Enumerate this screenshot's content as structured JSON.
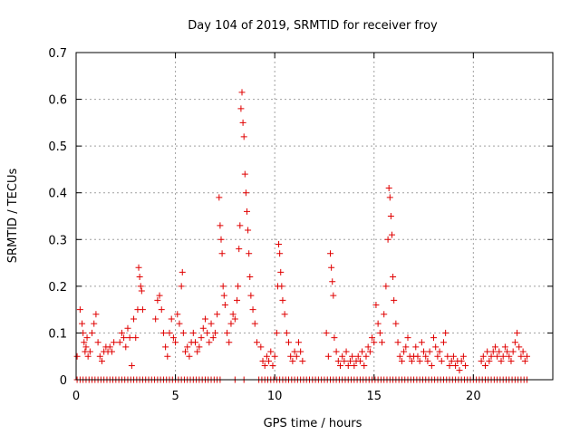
{
  "chart_data": {
    "type": "scatter",
    "title": "Day 104 of 2019, SRMTID for receiver froy",
    "xlabel": "GPS time / hours",
    "ylabel": "SRMTID / TECUs",
    "xlim": [
      0,
      24
    ],
    "ylim": [
      0,
      0.7
    ],
    "xticks": [
      0,
      5,
      10,
      15,
      20
    ],
    "xtick_labels": [
      "0",
      "5",
      "10",
      "15",
      "20"
    ],
    "yticks": [
      0,
      0.1,
      0.2,
      0.3,
      0.4,
      0.5,
      0.6,
      0.7
    ],
    "ytick_labels": [
      "0",
      "0.1",
      "0.2",
      "0.3",
      "0.4",
      "0.5",
      "0.6",
      "0.7"
    ],
    "grid": true,
    "marker": "+",
    "marker_color": "#e00000",
    "series": [
      {
        "name": "SRMTID",
        "points": [
          [
            0.05,
            0.05
          ],
          [
            0.2,
            0.15
          ],
          [
            0.3,
            0.12
          ],
          [
            0.35,
            0.1
          ],
          [
            0.4,
            0.08
          ],
          [
            0.45,
            0.06
          ],
          [
            0.5,
            0.07
          ],
          [
            0.55,
            0.09
          ],
          [
            0.6,
            0.05
          ],
          [
            0.7,
            0.06
          ],
          [
            0.8,
            0.1
          ],
          [
            0.9,
            0.12
          ],
          [
            1.0,
            0.14
          ],
          [
            1.1,
            0.08
          ],
          [
            1.2,
            0.05
          ],
          [
            1.3,
            0.04
          ],
          [
            1.4,
            0.06
          ],
          [
            1.5,
            0.07
          ],
          [
            1.6,
            0.06
          ],
          [
            1.7,
            0.07
          ],
          [
            1.8,
            0.06
          ],
          [
            1.9,
            0.08
          ],
          [
            2.2,
            0.08
          ],
          [
            2.3,
            0.1
          ],
          [
            2.4,
            0.09
          ],
          [
            2.5,
            0.07
          ],
          [
            2.6,
            0.11
          ],
          [
            2.7,
            0.09
          ],
          [
            2.8,
            0.03
          ],
          [
            2.9,
            0.13
          ],
          [
            3.0,
            0.09
          ],
          [
            3.1,
            0.15
          ],
          [
            3.15,
            0.24
          ],
          [
            3.2,
            0.22
          ],
          [
            3.25,
            0.2
          ],
          [
            3.3,
            0.19
          ],
          [
            3.35,
            0.15
          ],
          [
            4.0,
            0.13
          ],
          [
            4.1,
            0.17
          ],
          [
            4.2,
            0.18
          ],
          [
            4.3,
            0.15
          ],
          [
            4.4,
            0.1
          ],
          [
            4.5,
            0.07
          ],
          [
            4.6,
            0.05
          ],
          [
            4.7,
            0.1
          ],
          [
            4.8,
            0.13
          ],
          [
            4.9,
            0.09
          ],
          [
            5.0,
            0.08
          ],
          [
            5.1,
            0.14
          ],
          [
            5.2,
            0.12
          ],
          [
            5.3,
            0.2
          ],
          [
            5.35,
            0.23
          ],
          [
            5.4,
            0.1
          ],
          [
            5.5,
            0.06
          ],
          [
            5.6,
            0.07
          ],
          [
            5.7,
            0.05
          ],
          [
            5.8,
            0.08
          ],
          [
            5.9,
            0.1
          ],
          [
            6.0,
            0.08
          ],
          [
            6.1,
            0.06
          ],
          [
            6.2,
            0.07
          ],
          [
            6.3,
            0.09
          ],
          [
            6.4,
            0.11
          ],
          [
            6.5,
            0.13
          ],
          [
            6.6,
            0.1
          ],
          [
            6.7,
            0.08
          ],
          [
            6.8,
            0.12
          ],
          [
            6.9,
            0.09
          ],
          [
            7.0,
            0.1
          ],
          [
            7.1,
            0.14
          ],
          [
            7.2,
            0.39
          ],
          [
            7.25,
            0.33
          ],
          [
            7.3,
            0.3
          ],
          [
            7.35,
            0.27
          ],
          [
            7.4,
            0.2
          ],
          [
            7.45,
            0.18
          ],
          [
            7.5,
            0.16
          ],
          [
            7.6,
            0.1
          ],
          [
            7.7,
            0.08
          ],
          [
            7.8,
            0.12
          ],
          [
            7.9,
            0.14
          ],
          [
            8.0,
            0.13
          ],
          [
            8.1,
            0.17
          ],
          [
            8.15,
            0.2
          ],
          [
            8.2,
            0.28
          ],
          [
            8.25,
            0.33
          ],
          [
            8.3,
            0.58
          ],
          [
            8.35,
            0.615
          ],
          [
            8.4,
            0.55
          ],
          [
            8.45,
            0.52
          ],
          [
            8.5,
            0.44
          ],
          [
            8.55,
            0.4
          ],
          [
            8.6,
            0.36
          ],
          [
            8.65,
            0.32
          ],
          [
            8.7,
            0.27
          ],
          [
            8.75,
            0.22
          ],
          [
            8.8,
            0.18
          ],
          [
            8.9,
            0.15
          ],
          [
            9.0,
            0.12
          ],
          [
            9.1,
            0.08
          ],
          [
            9.3,
            0.07
          ],
          [
            9.4,
            0.04
          ],
          [
            9.5,
            0.03
          ],
          [
            9.6,
            0.05
          ],
          [
            9.7,
            0.04
          ],
          [
            9.8,
            0.06
          ],
          [
            9.9,
            0.03
          ],
          [
            10.0,
            0.05
          ],
          [
            10.1,
            0.1
          ],
          [
            10.15,
            0.2
          ],
          [
            10.2,
            0.29
          ],
          [
            10.25,
            0.27
          ],
          [
            10.3,
            0.23
          ],
          [
            10.35,
            0.2
          ],
          [
            10.4,
            0.17
          ],
          [
            10.5,
            0.14
          ],
          [
            10.6,
            0.1
          ],
          [
            10.7,
            0.08
          ],
          [
            10.8,
            0.05
          ],
          [
            10.9,
            0.04
          ],
          [
            11.0,
            0.06
          ],
          [
            11.1,
            0.05
          ],
          [
            11.2,
            0.08
          ],
          [
            11.3,
            0.06
          ],
          [
            11.4,
            0.04
          ],
          [
            12.6,
            0.1
          ],
          [
            12.7,
            0.05
          ],
          [
            12.8,
            0.27
          ],
          [
            12.85,
            0.24
          ],
          [
            12.9,
            0.21
          ],
          [
            12.95,
            0.18
          ],
          [
            13.0,
            0.09
          ],
          [
            13.1,
            0.06
          ],
          [
            13.2,
            0.04
          ],
          [
            13.3,
            0.03
          ],
          [
            13.4,
            0.05
          ],
          [
            13.5,
            0.04
          ],
          [
            13.6,
            0.06
          ],
          [
            13.7,
            0.03
          ],
          [
            13.8,
            0.04
          ],
          [
            13.9,
            0.05
          ],
          [
            14.0,
            0.03
          ],
          [
            14.1,
            0.04
          ],
          [
            14.2,
            0.05
          ],
          [
            14.3,
            0.04
          ],
          [
            14.4,
            0.06
          ],
          [
            14.5,
            0.03
          ],
          [
            14.6,
            0.05
          ],
          [
            14.7,
            0.07
          ],
          [
            14.8,
            0.06
          ],
          [
            14.9,
            0.09
          ],
          [
            15.0,
            0.08
          ],
          [
            15.1,
            0.16
          ],
          [
            15.2,
            0.12
          ],
          [
            15.3,
            0.1
          ],
          [
            15.4,
            0.08
          ],
          [
            15.5,
            0.14
          ],
          [
            15.6,
            0.2
          ],
          [
            15.7,
            0.3
          ],
          [
            15.75,
            0.41
          ],
          [
            15.8,
            0.39
          ],
          [
            15.85,
            0.35
          ],
          [
            15.9,
            0.31
          ],
          [
            15.95,
            0.22
          ],
          [
            16.0,
            0.17
          ],
          [
            16.1,
            0.12
          ],
          [
            16.2,
            0.08
          ],
          [
            16.3,
            0.05
          ],
          [
            16.4,
            0.04
          ],
          [
            16.5,
            0.06
          ],
          [
            16.6,
            0.07
          ],
          [
            16.7,
            0.09
          ],
          [
            16.8,
            0.05
          ],
          [
            16.9,
            0.04
          ],
          [
            17.0,
            0.05
          ],
          [
            17.1,
            0.07
          ],
          [
            17.2,
            0.05
          ],
          [
            17.3,
            0.04
          ],
          [
            17.4,
            0.08
          ],
          [
            17.5,
            0.06
          ],
          [
            17.6,
            0.05
          ],
          [
            17.7,
            0.04
          ],
          [
            17.8,
            0.06
          ],
          [
            17.9,
            0.03
          ],
          [
            18.0,
            0.09
          ],
          [
            18.1,
            0.07
          ],
          [
            18.2,
            0.05
          ],
          [
            18.3,
            0.06
          ],
          [
            18.4,
            0.04
          ],
          [
            18.5,
            0.08
          ],
          [
            18.6,
            0.1
          ],
          [
            18.7,
            0.05
          ],
          [
            18.8,
            0.03
          ],
          [
            18.9,
            0.04
          ],
          [
            19.0,
            0.05
          ],
          [
            19.1,
            0.03
          ],
          [
            19.2,
            0.04
          ],
          [
            19.3,
            0.02
          ],
          [
            19.4,
            0.04
          ],
          [
            19.5,
            0.05
          ],
          [
            19.6,
            0.03
          ],
          [
            20.4,
            0.04
          ],
          [
            20.5,
            0.05
          ],
          [
            20.6,
            0.03
          ],
          [
            20.7,
            0.06
          ],
          [
            20.8,
            0.04
          ],
          [
            20.9,
            0.05
          ],
          [
            21.0,
            0.06
          ],
          [
            21.1,
            0.07
          ],
          [
            21.2,
            0.05
          ],
          [
            21.3,
            0.06
          ],
          [
            21.4,
            0.04
          ],
          [
            21.5,
            0.05
          ],
          [
            21.6,
            0.07
          ],
          [
            21.7,
            0.06
          ],
          [
            21.8,
            0.05
          ],
          [
            21.9,
            0.04
          ],
          [
            22.0,
            0.06
          ],
          [
            22.1,
            0.08
          ],
          [
            22.2,
            0.1
          ],
          [
            22.3,
            0.07
          ],
          [
            22.4,
            0.05
          ],
          [
            22.5,
            0.06
          ],
          [
            22.6,
            0.04
          ],
          [
            22.7,
            0.05
          ]
        ]
      }
    ],
    "zero_points_x": [
      0.05,
      0.2,
      0.35,
      0.5,
      0.65,
      0.8,
      0.95,
      1.1,
      1.25,
      1.4,
      1.55,
      1.7,
      1.85,
      2.0,
      2.15,
      2.3,
      2.45,
      2.6,
      2.75,
      2.9,
      3.05,
      3.2,
      3.35,
      3.5,
      3.65,
      3.8,
      3.95,
      4.1,
      4.25,
      4.4,
      4.55,
      4.7,
      4.85,
      5.0,
      5.15,
      5.3,
      5.45,
      5.6,
      5.75,
      5.9,
      6.05,
      6.2,
      6.35,
      6.5,
      6.65,
      6.8,
      6.95,
      7.1,
      7.25,
      8.0,
      8.45,
      9.2,
      9.35,
      9.5,
      9.65,
      9.8,
      9.95,
      10.1,
      10.25,
      10.4,
      10.55,
      10.7,
      10.85,
      11.0,
      11.15,
      11.3,
      11.45,
      11.6,
      11.75,
      11.9,
      12.05,
      12.2,
      12.35,
      12.5,
      12.65,
      12.8,
      12.95,
      13.1,
      13.25,
      13.4,
      13.55,
      13.7,
      13.85,
      14.0,
      14.15,
      14.3,
      14.45,
      14.6,
      14.75,
      14.9,
      15.05,
      15.2,
      15.35,
      15.5,
      15.65,
      15.8,
      15.95,
      16.1,
      16.25,
      16.4,
      16.55,
      16.7,
      16.85,
      17.0,
      17.15,
      17.3,
      17.45,
      17.6,
      17.75,
      17.9,
      18.05,
      18.2,
      18.35,
      18.5,
      18.65,
      18.8,
      18.95,
      19.1,
      19.25,
      19.4,
      19.55,
      19.7,
      19.85,
      20.0,
      20.15,
      20.3,
      20.45,
      20.6,
      20.75,
      20.9,
      21.05,
      21.2,
      21.35,
      21.5,
      21.65,
      21.8,
      21.95,
      22.1,
      22.25,
      22.4,
      22.55,
      22.7
    ]
  }
}
